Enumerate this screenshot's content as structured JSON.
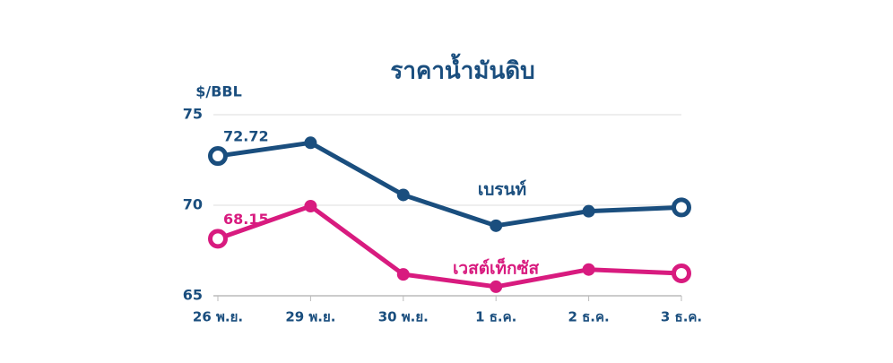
{
  "chart_data": {
    "type": "line",
    "title": "ราคาน้ำมันดิบ",
    "y_label": "$/BBL",
    "categories": [
      "26 พ.ย.",
      "29 พ.ย.",
      "30 พ.ย.",
      "1 ธ.ค.",
      "2 ธ.ค.",
      "3 ธ.ค."
    ],
    "series": [
      {
        "name": "เบรนท์",
        "color": "#1a4e7e",
        "values": [
          72.72,
          73.45,
          70.57,
          68.87,
          69.67,
          69.88
        ]
      },
      {
        "name": "เวสต์เท็กซัส",
        "color": "#d81b7f",
        "values": [
          68.15,
          69.95,
          66.18,
          65.5,
          66.45,
          66.24
        ]
      }
    ],
    "ylim": [
      65,
      75
    ],
    "yticks": [
      65,
      70,
      75
    ],
    "grid": true,
    "data_labels": "first"
  }
}
